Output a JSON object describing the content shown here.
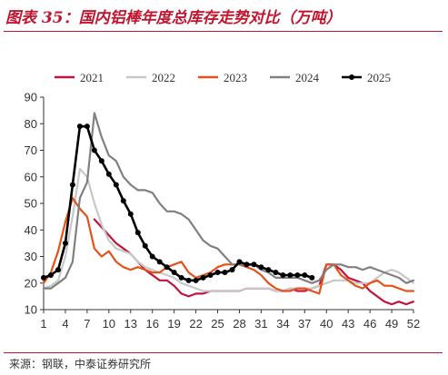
{
  "figure": {
    "title": "图表 35：国内铝棒年度总库存走势对比（万吨）",
    "source": "来源：钢联，中泰证券研究所"
  },
  "chart_data": {
    "type": "line",
    "title": "图表 35：国内铝棒年度总库存走势对比（万吨）",
    "xlabel": "",
    "ylabel": "",
    "ylim": [
      10,
      90
    ],
    "xlim": [
      1,
      52
    ],
    "y_ticks": [
      10,
      20,
      30,
      40,
      50,
      60,
      70,
      80,
      90
    ],
    "x_ticks": [
      1,
      4,
      7,
      10,
      13,
      16,
      19,
      22,
      25,
      28,
      31,
      34,
      37,
      40,
      43,
      46,
      49,
      52
    ],
    "grid": false,
    "legend_position": "top",
    "series": [
      {
        "name": "2021",
        "color": "#c0143c",
        "markers": false,
        "x": [
          8,
          9,
          10,
          11,
          12,
          13,
          14,
          15,
          16,
          17,
          18,
          19,
          20,
          21,
          22,
          23,
          24,
          25,
          26,
          27,
          28,
          29,
          30,
          31,
          32,
          33,
          34,
          35,
          36,
          37,
          38,
          39,
          40,
          41,
          42,
          43,
          44,
          45,
          46,
          47,
          48,
          49,
          50,
          51,
          52
        ],
        "values": [
          44,
          41,
          38,
          35,
          33,
          31,
          28,
          25,
          23,
          21,
          21,
          19,
          16,
          15,
          16,
          16,
          17,
          17,
          17,
          17,
          17,
          18,
          18,
          18,
          18,
          17,
          17,
          18,
          17,
          17,
          18,
          19,
          27,
          27,
          25,
          22,
          21,
          20,
          17,
          15,
          13,
          12,
          13,
          12,
          13
        ]
      },
      {
        "name": "2022",
        "color": "#c8c8c8",
        "markers": false,
        "x": [
          1,
          2,
          3,
          4,
          5,
          6,
          7,
          8,
          9,
          10,
          11,
          12,
          13,
          14,
          15,
          16,
          17,
          18,
          19,
          20,
          21,
          22,
          23,
          24,
          25,
          26,
          27,
          28,
          29,
          30,
          31,
          32,
          33,
          34,
          35,
          36,
          37,
          38,
          39,
          40,
          41,
          42,
          43,
          44,
          45,
          46,
          47,
          48,
          49,
          50,
          51,
          52
        ],
        "values": [
          18,
          19,
          21,
          30,
          45,
          63,
          60,
          50,
          42,
          36,
          33,
          32,
          31,
          28,
          26,
          25,
          24,
          23,
          22,
          20,
          19,
          18,
          17,
          17,
          17,
          17,
          17,
          17,
          18,
          18,
          18,
          18,
          17,
          17,
          18,
          18,
          18,
          18,
          19,
          20,
          21,
          21,
          21,
          20,
          20,
          20,
          22,
          24,
          25,
          24,
          22,
          20
        ]
      },
      {
        "name": "2023",
        "color": "#e2521a",
        "markers": false,
        "x": [
          1,
          2,
          3,
          4,
          5,
          6,
          7,
          8,
          9,
          10,
          11,
          12,
          13,
          14,
          15,
          16,
          17,
          18,
          19,
          20,
          21,
          22,
          23,
          24,
          25,
          26,
          27,
          28,
          29,
          30,
          31,
          32,
          33,
          34,
          35,
          36,
          37,
          38,
          39,
          40,
          41,
          42,
          43,
          44,
          45,
          46,
          47,
          48,
          49,
          50,
          51,
          52
        ],
        "values": [
          20,
          24,
          32,
          43,
          52,
          48,
          45,
          33,
          30,
          32,
          28,
          26,
          25,
          26,
          25,
          24,
          24,
          26,
          27,
          28,
          24,
          22,
          23,
          24,
          26,
          27,
          27,
          27,
          26,
          25,
          23,
          20,
          18,
          17,
          17,
          18,
          18,
          17,
          16,
          27,
          27,
          23,
          21,
          19,
          18,
          20,
          21,
          19,
          19,
          18,
          17,
          17
        ]
      },
      {
        "name": "2024",
        "color": "#808080",
        "markers": false,
        "x": [
          1,
          2,
          3,
          4,
          5,
          6,
          7,
          8,
          9,
          10,
          11,
          12,
          13,
          14,
          15,
          16,
          17,
          18,
          19,
          20,
          21,
          22,
          23,
          24,
          25,
          26,
          27,
          28,
          29,
          30,
          31,
          32,
          33,
          34,
          35,
          36,
          37,
          38,
          39,
          40,
          41,
          42,
          43,
          44,
          45,
          46,
          47,
          48,
          49,
          50,
          51,
          52
        ],
        "values": [
          18,
          18,
          20,
          22,
          28,
          52,
          58,
          84,
          75,
          68,
          66,
          60,
          57,
          55,
          55,
          54,
          50,
          47,
          47,
          46,
          44,
          40,
          36,
          34,
          33,
          30,
          27,
          27,
          27,
          27,
          25,
          24,
          22,
          22,
          22,
          22,
          21,
          20,
          21,
          25,
          27,
          27,
          26,
          26,
          25,
          26,
          25,
          24,
          23,
          22,
          20,
          21
        ]
      },
      {
        "name": "2025",
        "color": "#000000",
        "markers": true,
        "x": [
          1,
          2,
          3,
          4,
          5,
          6,
          7,
          8,
          9,
          10,
          11,
          12,
          13,
          14,
          15,
          16,
          17,
          18,
          19,
          20,
          21,
          22,
          23,
          24,
          25,
          26,
          27,
          28,
          29,
          30,
          31,
          32,
          33,
          34,
          35,
          36,
          37,
          38
        ],
        "values": [
          22,
          23,
          25,
          35,
          57,
          79,
          79,
          70,
          66,
          61,
          57,
          51,
          46,
          39,
          34,
          30,
          28,
          26,
          24,
          22,
          21,
          21,
          22,
          23,
          24,
          24,
          25,
          28,
          27,
          27,
          26,
          25,
          24,
          23,
          23,
          23,
          23,
          22
        ]
      }
    ]
  }
}
